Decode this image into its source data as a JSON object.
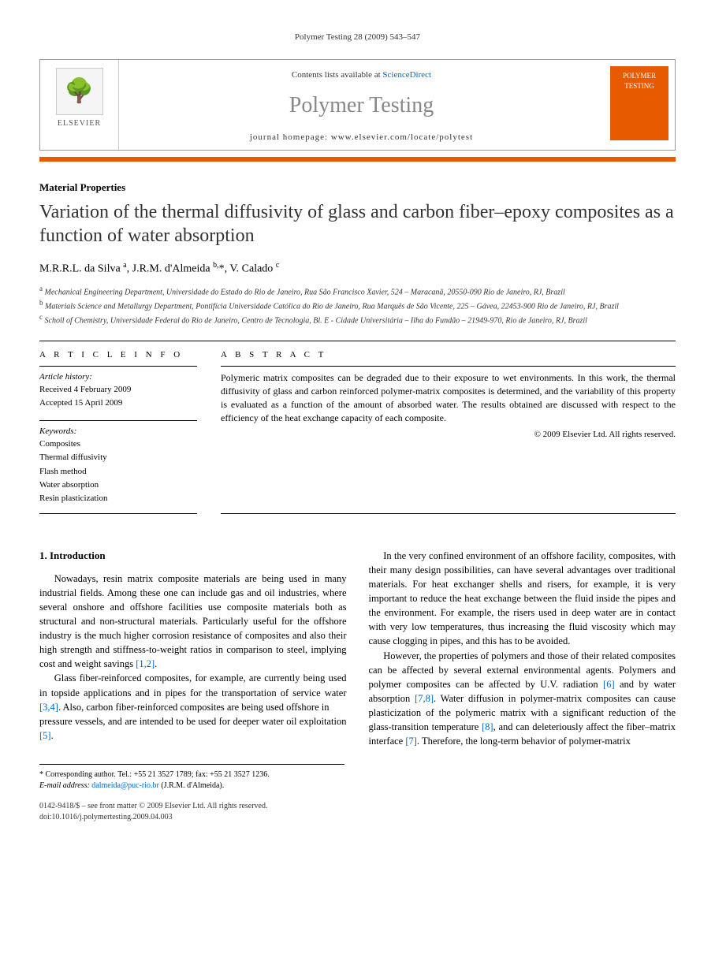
{
  "running_head": "Polymer Testing 28 (2009) 543–547",
  "header": {
    "elsevier": "ELSEVIER",
    "contents_prefix": "Contents lists available at ",
    "contents_link": "ScienceDirect",
    "journal": "Polymer Testing",
    "homepage_prefix": "journal homepage: ",
    "homepage_url": "www.elsevier.com/locate/polytest",
    "cover_text": "POLYMER TESTING"
  },
  "section_label": "Material Properties",
  "title": "Variation of the thermal diffusivity of glass and carbon fiber–epoxy composites as a function of water absorption",
  "authors_html": "M.R.R.L. da Silva <sup>a</sup>, J.R.M. d'Almeida <sup>b,</sup>*, V. Calado <sup>c</sup>",
  "affiliations": [
    {
      "sup": "a",
      "text": "Mechanical Engineering Department, Universidade do Estado do Rio de Janeiro, Rua São Francisco Xavier, 524 – Maracanã, 20550-090 Rio de Janeiro, RJ, Brazil"
    },
    {
      "sup": "b",
      "text": "Materials Science and Metallurgy Department, Pontifícia Universidade Católica do Rio de Janeiro, Rua Marquês de São Vicente, 225 – Gávea, 22453-900 Rio de Janeiro, RJ, Brazil"
    },
    {
      "sup": "c",
      "text": "Scholl of Chemistry, Universidade Federal do Rio de Janeiro, Centro de Tecnologia, Bl. E - Cidade Universitária – Ilha do Fundão – 21949-970, Rio de Janeiro, RJ, Brazil"
    }
  ],
  "article_info": {
    "heading": "A R T I C L E   I N F O",
    "history_label": "Article history:",
    "received": "Received 4 February 2009",
    "accepted": "Accepted 15 April 2009",
    "keywords_label": "Keywords:",
    "keywords": [
      "Composites",
      "Thermal diffusivity",
      "Flash method",
      "Water absorption",
      "Resin plasticization"
    ]
  },
  "abstract": {
    "heading": "A B S T R A C T",
    "text": "Polymeric matrix composites can be degraded due to their exposure to wet environments. In this work, the thermal diffusivity of glass and carbon reinforced polymer-matrix composites is determined, and the variability of this property is evaluated as a function of the amount of absorbed water. The results obtained are discussed with respect to the efficiency of the heat exchange capacity of each composite.",
    "copyright": "© 2009 Elsevier Ltd. All rights reserved."
  },
  "intro": {
    "heading": "1. Introduction",
    "p1": "Nowadays, resin matrix composite materials are being used in many industrial fields. Among these one can include gas and oil industries, where several onshore and offshore facilities use composite materials both as structural and non-structural materials. Particularly useful for the offshore industry is the much higher corrosion resistance of composites and also their high strength and stiffness-to-weight ratios in comparison to steel, implying cost and weight savings ",
    "ref1": "[1,2]",
    "p1_end": ".",
    "p2": "Glass fiber-reinforced composites, for example, are currently being used in topside applications and in pipes for the transportation of service water ",
    "ref2": "[3,4]",
    "p2_end": ". Also, carbon fiber-reinforced composites are being used offshore in",
    "p3_pre": "pressure vessels, and are intended to be used for deeper water oil exploitation ",
    "ref3": "[5]",
    "p3_end": ".",
    "p4": "In the very confined environment of an offshore facility, composites, with their many design possibilities, can have several advantages over traditional materials. For heat exchanger shells and risers, for example, it is very important to reduce the heat exchange between the fluid inside the pipes and the environment. For example, the risers used in deep water are in contact with very low temperatures, thus increasing the fluid viscosity which may cause clogging in pipes, and this has to be avoided.",
    "p5a": "However, the properties of polymers and those of their related composites can be affected by several external environmental agents. Polymers and polymer composites can be affected by U.V. radiation ",
    "ref6": "[6]",
    "p5b": " and by water absorption ",
    "ref78": "[7,8]",
    "p5c": ". Water diffusion in polymer-matrix composites can cause plasticization of the polymeric matrix with a significant reduction of the glass-transition temperature ",
    "ref8": "[8]",
    "p5d": ", and can deleteriously affect the fiber–matrix interface ",
    "ref7": "[7]",
    "p5e": ". Therefore, the long-term behavior of polymer-matrix"
  },
  "footer": {
    "corr_label": "* Corresponding author. Tel.: +55 21 3527 1789; fax: +55 21 3527 1236.",
    "email_label": "E-mail address: ",
    "email": "dalmeida@puc-rio.br",
    "email_author": " (J.R.M. d'Almeida).",
    "issn": "0142-9418/$ – see front matter © 2009 Elsevier Ltd. All rights reserved.",
    "doi": "doi:10.1016/j.polymertesting.2009.04.003"
  },
  "colors": {
    "accent": "#e85a00",
    "link": "#0066cc"
  }
}
